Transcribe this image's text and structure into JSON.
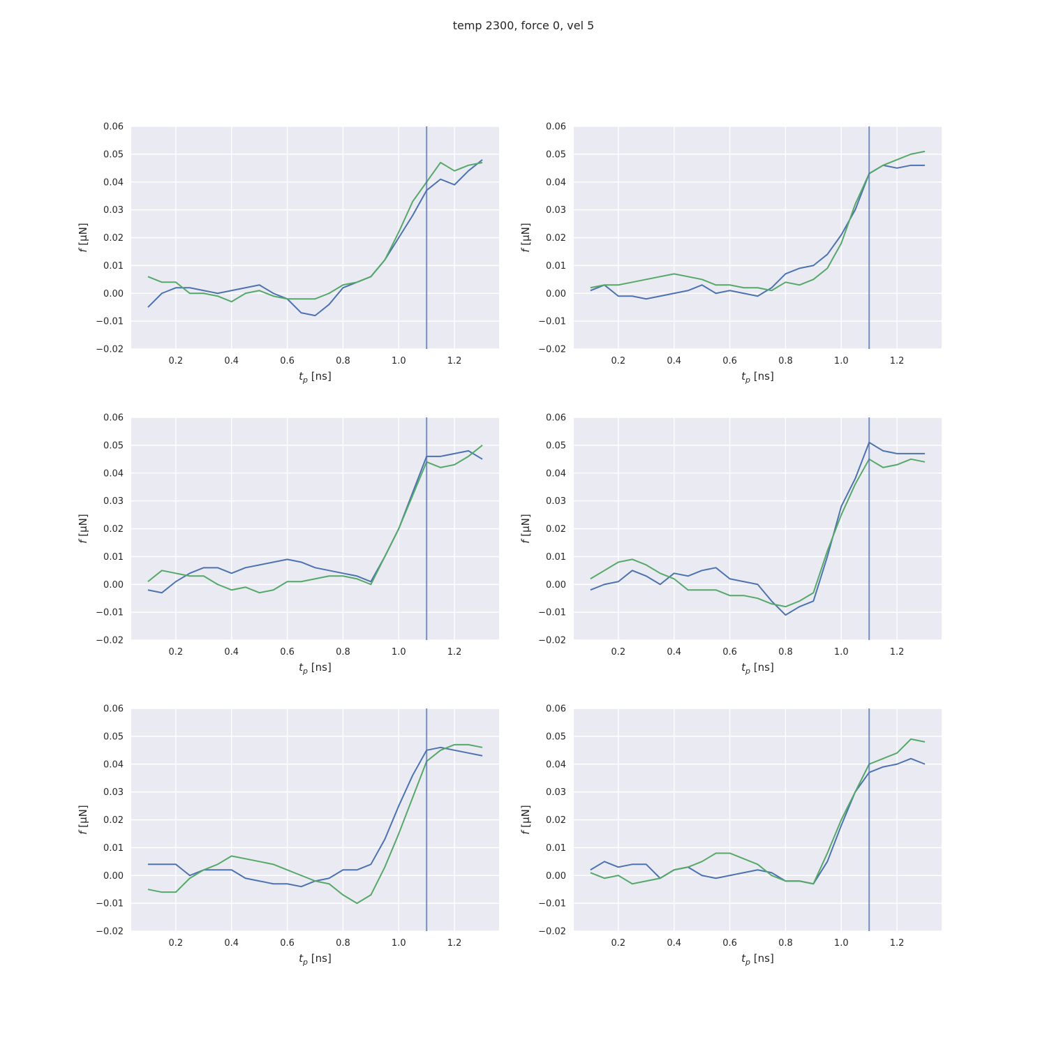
{
  "figure": {
    "title": "temp 2300, force 0, vel 5"
  },
  "colors": {
    "background": "#eaeaf2",
    "grid": "#ffffff",
    "series_blue": "#4c72b0",
    "series_green": "#55a868",
    "vline": "#4c72b0"
  },
  "chart_data": [
    {
      "type": "line",
      "xlabel_main": "t",
      "xlabel_sub": "p",
      "xlabel_unit": " [ns]",
      "ylabel_italic": "f",
      "ylabel_unit": " [μN]",
      "xlim": [
        0.04,
        1.36
      ],
      "ylim": [
        -0.02,
        0.06
      ],
      "xticks": [
        "0.2",
        "0.4",
        "0.6",
        "0.8",
        "1.0",
        "1.2"
      ],
      "yticks": [
        "−0.02",
        "−0.01",
        "0.00",
        "0.01",
        "0.02",
        "0.03",
        "0.04",
        "0.05",
        "0.06"
      ],
      "grid": true,
      "vline_x": 1.1,
      "x": [
        0.1,
        0.15,
        0.2,
        0.25,
        0.3,
        0.35,
        0.4,
        0.45,
        0.5,
        0.55,
        0.6,
        0.65,
        0.7,
        0.75,
        0.8,
        0.85,
        0.9,
        0.95,
        1.0,
        1.05,
        1.1,
        1.15,
        1.2,
        1.25,
        1.3
      ],
      "series": [
        {
          "color": "blue",
          "values": [
            -0.005,
            0.0,
            0.002,
            0.002,
            0.001,
            0.0,
            0.001,
            0.002,
            0.003,
            0.0,
            -0.002,
            -0.007,
            -0.008,
            -0.004,
            0.002,
            0.004,
            0.006,
            0.012,
            0.02,
            0.028,
            0.037,
            0.041,
            0.039,
            0.044,
            0.048
          ]
        },
        {
          "color": "green",
          "values": [
            0.006,
            0.004,
            0.004,
            0.0,
            0.0,
            -0.001,
            -0.003,
            0.0,
            0.001,
            -0.001,
            -0.002,
            -0.002,
            -0.002,
            0.0,
            0.003,
            0.004,
            0.006,
            0.012,
            0.022,
            0.033,
            0.04,
            0.047,
            0.044,
            0.046,
            0.047
          ]
        }
      ]
    },
    {
      "type": "line",
      "xlabel_main": "t",
      "xlabel_sub": "p",
      "xlabel_unit": " [ns]",
      "ylabel_italic": "f",
      "ylabel_unit": " [μN]",
      "xlim": [
        0.04,
        1.36
      ],
      "ylim": [
        -0.02,
        0.06
      ],
      "xticks": [
        "0.2",
        "0.4",
        "0.6",
        "0.8",
        "1.0",
        "1.2"
      ],
      "yticks": [
        "−0.02",
        "−0.01",
        "0.00",
        "0.01",
        "0.02",
        "0.03",
        "0.04",
        "0.05",
        "0.06"
      ],
      "grid": true,
      "vline_x": 1.1,
      "x": [
        0.1,
        0.15,
        0.2,
        0.25,
        0.3,
        0.35,
        0.4,
        0.45,
        0.5,
        0.55,
        0.6,
        0.65,
        0.7,
        0.75,
        0.8,
        0.85,
        0.9,
        0.95,
        1.0,
        1.05,
        1.1,
        1.15,
        1.2,
        1.25,
        1.3
      ],
      "series": [
        {
          "color": "blue",
          "values": [
            0.001,
            0.003,
            -0.001,
            -0.001,
            -0.002,
            -0.001,
            0.0,
            0.001,
            0.003,
            0.0,
            0.001,
            0.0,
            -0.001,
            0.002,
            0.007,
            0.009,
            0.01,
            0.014,
            0.021,
            0.03,
            0.043,
            0.046,
            0.045,
            0.046,
            0.046
          ]
        },
        {
          "color": "green",
          "values": [
            0.002,
            0.003,
            0.003,
            0.004,
            0.005,
            0.006,
            0.007,
            0.006,
            0.005,
            0.003,
            0.003,
            0.002,
            0.002,
            0.001,
            0.004,
            0.003,
            0.005,
            0.009,
            0.018,
            0.032,
            0.043,
            0.046,
            0.048,
            0.05,
            0.051
          ]
        }
      ]
    },
    {
      "type": "line",
      "xlabel_main": "t",
      "xlabel_sub": "p",
      "xlabel_unit": " [ns]",
      "ylabel_italic": "f",
      "ylabel_unit": " [μN]",
      "xlim": [
        0.04,
        1.36
      ],
      "ylim": [
        -0.02,
        0.06
      ],
      "xticks": [
        "0.2",
        "0.4",
        "0.6",
        "0.8",
        "1.0",
        "1.2"
      ],
      "yticks": [
        "−0.02",
        "−0.01",
        "0.00",
        "0.01",
        "0.02",
        "0.03",
        "0.04",
        "0.05",
        "0.06"
      ],
      "grid": true,
      "vline_x": 1.1,
      "x": [
        0.1,
        0.15,
        0.2,
        0.25,
        0.3,
        0.35,
        0.4,
        0.45,
        0.5,
        0.55,
        0.6,
        0.65,
        0.7,
        0.75,
        0.8,
        0.85,
        0.9,
        0.95,
        1.0,
        1.05,
        1.1,
        1.15,
        1.2,
        1.25,
        1.3
      ],
      "series": [
        {
          "color": "blue",
          "values": [
            -0.002,
            -0.003,
            0.001,
            0.004,
            0.006,
            0.006,
            0.004,
            0.006,
            0.007,
            0.008,
            0.009,
            0.008,
            0.006,
            0.005,
            0.004,
            0.003,
            0.001,
            0.01,
            0.02,
            0.033,
            0.046,
            0.046,
            0.047,
            0.048,
            0.045
          ]
        },
        {
          "color": "green",
          "values": [
            0.001,
            0.005,
            0.004,
            0.003,
            0.003,
            0.0,
            -0.002,
            -0.001,
            -0.003,
            -0.002,
            0.001,
            0.001,
            0.002,
            0.003,
            0.003,
            0.002,
            0.0,
            0.01,
            0.02,
            0.032,
            0.044,
            0.042,
            0.043,
            0.046,
            0.05
          ]
        }
      ]
    },
    {
      "type": "line",
      "xlabel_main": "t",
      "xlabel_sub": "p",
      "xlabel_unit": " [ns]",
      "ylabel_italic": "f",
      "ylabel_unit": " [μN]",
      "xlim": [
        0.04,
        1.36
      ],
      "ylim": [
        -0.02,
        0.06
      ],
      "xticks": [
        "0.2",
        "0.4",
        "0.6",
        "0.8",
        "1.0",
        "1.2"
      ],
      "yticks": [
        "−0.02",
        "−0.01",
        "0.00",
        "0.01",
        "0.02",
        "0.03",
        "0.04",
        "0.05",
        "0.06"
      ],
      "grid": true,
      "vline_x": 1.1,
      "x": [
        0.1,
        0.15,
        0.2,
        0.25,
        0.3,
        0.35,
        0.4,
        0.45,
        0.5,
        0.55,
        0.6,
        0.65,
        0.7,
        0.75,
        0.8,
        0.85,
        0.9,
        0.95,
        1.0,
        1.05,
        1.1,
        1.15,
        1.2,
        1.25,
        1.3
      ],
      "series": [
        {
          "color": "blue",
          "values": [
            -0.002,
            0.0,
            0.001,
            0.005,
            0.003,
            0.0,
            0.004,
            0.003,
            0.005,
            0.006,
            0.002,
            0.001,
            0.0,
            -0.006,
            -0.011,
            -0.008,
            -0.006,
            0.01,
            0.028,
            0.038,
            0.051,
            0.048,
            0.047,
            0.047,
            0.047
          ]
        },
        {
          "color": "green",
          "values": [
            0.002,
            0.005,
            0.008,
            0.009,
            0.007,
            0.004,
            0.002,
            -0.002,
            -0.002,
            -0.002,
            -0.004,
            -0.004,
            -0.005,
            -0.007,
            -0.008,
            -0.006,
            -0.003,
            0.012,
            0.025,
            0.036,
            0.045,
            0.042,
            0.043,
            0.045,
            0.044
          ]
        }
      ]
    },
    {
      "type": "line",
      "xlabel_main": "t",
      "xlabel_sub": "p",
      "xlabel_unit": " [ns]",
      "ylabel_italic": "f",
      "ylabel_unit": " [μN]",
      "xlim": [
        0.04,
        1.36
      ],
      "ylim": [
        -0.02,
        0.06
      ],
      "xticks": [
        "0.2",
        "0.4",
        "0.6",
        "0.8",
        "1.0",
        "1.2"
      ],
      "yticks": [
        "−0.02",
        "−0.01",
        "0.00",
        "0.01",
        "0.02",
        "0.03",
        "0.04",
        "0.05",
        "0.06"
      ],
      "grid": true,
      "vline_x": 1.1,
      "x": [
        0.1,
        0.15,
        0.2,
        0.25,
        0.3,
        0.35,
        0.4,
        0.45,
        0.5,
        0.55,
        0.6,
        0.65,
        0.7,
        0.75,
        0.8,
        0.85,
        0.9,
        0.95,
        1.0,
        1.05,
        1.1,
        1.15,
        1.2,
        1.25,
        1.3
      ],
      "series": [
        {
          "color": "blue",
          "values": [
            0.004,
            0.004,
            0.004,
            0.0,
            0.002,
            0.002,
            0.002,
            -0.001,
            -0.002,
            -0.003,
            -0.003,
            -0.004,
            -0.002,
            -0.001,
            0.002,
            0.002,
            0.004,
            0.013,
            0.025,
            0.036,
            0.045,
            0.046,
            0.045,
            0.044,
            0.043
          ]
        },
        {
          "color": "green",
          "values": [
            -0.005,
            -0.006,
            -0.006,
            -0.001,
            0.002,
            0.004,
            0.007,
            0.006,
            0.005,
            0.004,
            0.002,
            0.0,
            -0.002,
            -0.003,
            -0.007,
            -0.01,
            -0.007,
            0.003,
            0.015,
            0.028,
            0.041,
            0.045,
            0.047,
            0.047,
            0.046
          ]
        }
      ]
    },
    {
      "type": "line",
      "xlabel_main": "t",
      "xlabel_sub": "p",
      "xlabel_unit": " [ns]",
      "ylabel_italic": "f",
      "ylabel_unit": " [μN]",
      "xlim": [
        0.04,
        1.36
      ],
      "ylim": [
        -0.02,
        0.06
      ],
      "xticks": [
        "0.2",
        "0.4",
        "0.6",
        "0.8",
        "1.0",
        "1.2"
      ],
      "yticks": [
        "−0.02",
        "−0.01",
        "0.00",
        "0.01",
        "0.02",
        "0.03",
        "0.04",
        "0.05",
        "0.06"
      ],
      "grid": true,
      "vline_x": 1.1,
      "x": [
        0.1,
        0.15,
        0.2,
        0.25,
        0.3,
        0.35,
        0.4,
        0.45,
        0.5,
        0.55,
        0.6,
        0.65,
        0.7,
        0.75,
        0.8,
        0.85,
        0.9,
        0.95,
        1.0,
        1.05,
        1.1,
        1.15,
        1.2,
        1.25,
        1.3
      ],
      "series": [
        {
          "color": "blue",
          "values": [
            0.002,
            0.005,
            0.003,
            0.004,
            0.004,
            -0.001,
            0.002,
            0.003,
            0.0,
            -0.001,
            0.0,
            0.001,
            0.002,
            0.001,
            -0.002,
            -0.002,
            -0.003,
            0.005,
            0.018,
            0.03,
            0.037,
            0.039,
            0.04,
            0.042,
            0.04
          ]
        },
        {
          "color": "green",
          "values": [
            0.001,
            -0.001,
            0.0,
            -0.003,
            -0.002,
            -0.001,
            0.002,
            0.003,
            0.005,
            0.008,
            0.008,
            0.006,
            0.004,
            0.0,
            -0.002,
            -0.002,
            -0.003,
            0.008,
            0.02,
            0.03,
            0.04,
            0.042,
            0.044,
            0.049,
            0.048
          ]
        }
      ]
    }
  ]
}
